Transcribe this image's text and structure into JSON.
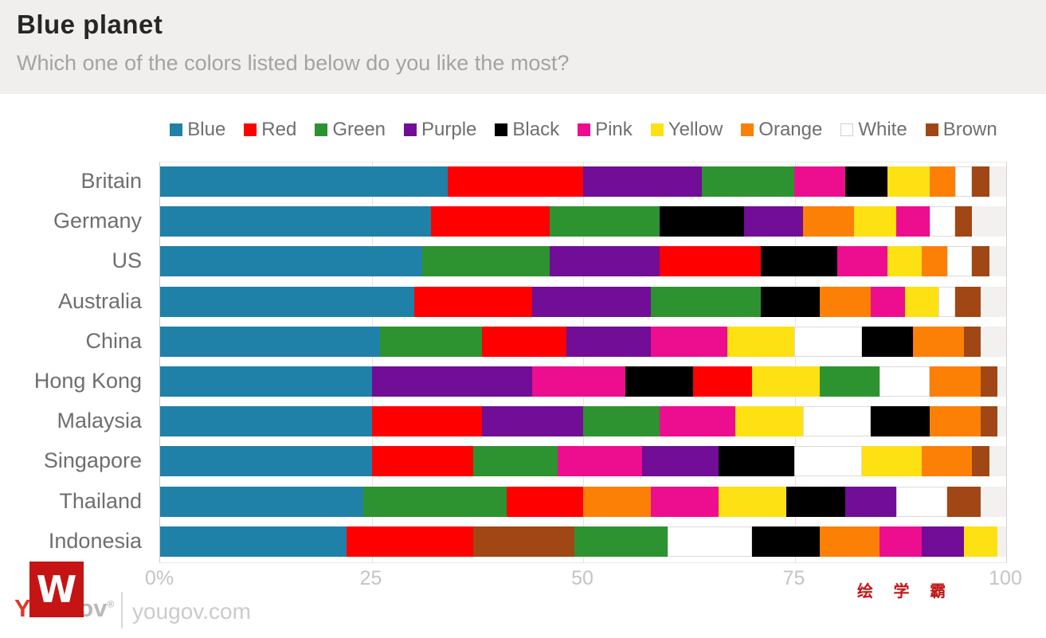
{
  "header": {
    "title": "Blue planet",
    "subtitle": "Which one of the colors listed below do you like the most?"
  },
  "chart_data": {
    "type": "bar",
    "stacked": true,
    "orientation": "horizontal",
    "title": "Blue planet",
    "legend_position": "top",
    "grid": "vertical",
    "xlim": [
      0,
      100
    ],
    "x_ticks": [
      {
        "label": "0%",
        "value": 0
      },
      {
        "label": "25",
        "value": 25
      },
      {
        "label": "50",
        "value": 50
      },
      {
        "label": "75",
        "value": 75
      },
      {
        "label": "100",
        "value": 100
      }
    ],
    "gridline_values": [
      25,
      50,
      75
    ],
    "series_order": [
      "Blue",
      "Red",
      "Green",
      "Purple",
      "Black",
      "Pink",
      "Yellow",
      "Orange",
      "White",
      "Brown"
    ],
    "colors": {
      "Blue": "#1f81a8",
      "Red": "#fe0000",
      "Green": "#2d9330",
      "Purple": "#710d96",
      "Black": "#000000",
      "Pink": "#ed0e90",
      "Yellow": "#fee112",
      "Orange": "#fb8005",
      "White": "#ffffff",
      "Brown": "#a04715"
    },
    "track_color": "#f2f1ef",
    "categories": [
      "Britain",
      "Germany",
      "US",
      "Australia",
      "China",
      "Hong Kong",
      "Malaysia",
      "Singapore",
      "Thailand",
      "Indonesia"
    ],
    "rows": [
      {
        "country": "Britain",
        "segments": [
          [
            "Blue",
            34
          ],
          [
            "Red",
            16
          ],
          [
            "Purple",
            14
          ],
          [
            "Green",
            11
          ],
          [
            "Pink",
            6
          ],
          [
            "Black",
            5
          ],
          [
            "Yellow",
            5
          ],
          [
            "Orange",
            3
          ],
          [
            "White",
            2
          ],
          [
            "Brown",
            2
          ]
        ]
      },
      {
        "country": "Germany",
        "segments": [
          [
            "Blue",
            32
          ],
          [
            "Red",
            14
          ],
          [
            "Green",
            13
          ],
          [
            "Black",
            10
          ],
          [
            "Purple",
            7
          ],
          [
            "Orange",
            6
          ],
          [
            "Yellow",
            5
          ],
          [
            "Pink",
            4
          ],
          [
            "White",
            3
          ],
          [
            "Brown",
            2
          ]
        ]
      },
      {
        "country": "US",
        "segments": [
          [
            "Blue",
            31
          ],
          [
            "Green",
            15
          ],
          [
            "Purple",
            13
          ],
          [
            "Red",
            12
          ],
          [
            "Black",
            9
          ],
          [
            "Pink",
            6
          ],
          [
            "Yellow",
            4
          ],
          [
            "Orange",
            3
          ],
          [
            "White",
            3
          ],
          [
            "Brown",
            2
          ]
        ]
      },
      {
        "country": "Australia",
        "segments": [
          [
            "Blue",
            30
          ],
          [
            "Red",
            14
          ],
          [
            "Purple",
            14
          ],
          [
            "Green",
            13
          ],
          [
            "Black",
            7
          ],
          [
            "Orange",
            6
          ],
          [
            "Pink",
            4
          ],
          [
            "Yellow",
            4
          ],
          [
            "White",
            2
          ],
          [
            "Brown",
            3
          ]
        ]
      },
      {
        "country": "China",
        "segments": [
          [
            "Blue",
            26
          ],
          [
            "Green",
            12
          ],
          [
            "Red",
            10
          ],
          [
            "Purple",
            10
          ],
          [
            "Pink",
            9
          ],
          [
            "Yellow",
            8
          ],
          [
            "White",
            8
          ],
          [
            "Black",
            6
          ],
          [
            "Orange",
            6
          ],
          [
            "Brown",
            2
          ]
        ]
      },
      {
        "country": "Hong Kong",
        "segments": [
          [
            "Blue",
            25
          ],
          [
            "Purple",
            19
          ],
          [
            "Pink",
            11
          ],
          [
            "Black",
            8
          ],
          [
            "Red",
            7
          ],
          [
            "Yellow",
            8
          ],
          [
            "Green",
            7
          ],
          [
            "White",
            6
          ],
          [
            "Orange",
            6
          ],
          [
            "Brown",
            2
          ]
        ]
      },
      {
        "country": "Malaysia",
        "segments": [
          [
            "Blue",
            25
          ],
          [
            "Red",
            13
          ],
          [
            "Purple",
            12
          ],
          [
            "Green",
            9
          ],
          [
            "Pink",
            9
          ],
          [
            "Yellow",
            8
          ],
          [
            "White",
            8
          ],
          [
            "Black",
            7
          ],
          [
            "Orange",
            6
          ],
          [
            "Brown",
            2
          ]
        ]
      },
      {
        "country": "Singapore",
        "segments": [
          [
            "Blue",
            25
          ],
          [
            "Red",
            12
          ],
          [
            "Green",
            10
          ],
          [
            "Pink",
            10
          ],
          [
            "Purple",
            9
          ],
          [
            "Black",
            9
          ],
          [
            "White",
            8
          ],
          [
            "Yellow",
            7
          ],
          [
            "Orange",
            6
          ],
          [
            "Brown",
            2
          ]
        ]
      },
      {
        "country": "Thailand",
        "segments": [
          [
            "Blue",
            24
          ],
          [
            "Green",
            17
          ],
          [
            "Red",
            9
          ],
          [
            "Orange",
            8
          ],
          [
            "Pink",
            8
          ],
          [
            "Yellow",
            8
          ],
          [
            "Black",
            7
          ],
          [
            "Purple",
            6
          ],
          [
            "White",
            6
          ],
          [
            "Brown",
            4
          ]
        ]
      },
      {
        "country": "Indonesia",
        "segments": [
          [
            "Blue",
            22
          ],
          [
            "Red",
            15
          ],
          [
            "Brown",
            12
          ],
          [
            "Green",
            11
          ],
          [
            "White",
            10
          ],
          [
            "Black",
            8
          ],
          [
            "Orange",
            7
          ],
          [
            "Pink",
            5
          ],
          [
            "Purple",
            5
          ],
          [
            "Yellow",
            4
          ]
        ]
      }
    ]
  },
  "watermark": {
    "text": "绘 学 霸",
    "color": "#c11616"
  },
  "footer": {
    "brand_you": "You",
    "brand_gov": "Gov",
    "brand_reg": "®",
    "site": "yougov.com",
    "logo_letter": "W",
    "logo_color": "#c51414"
  }
}
